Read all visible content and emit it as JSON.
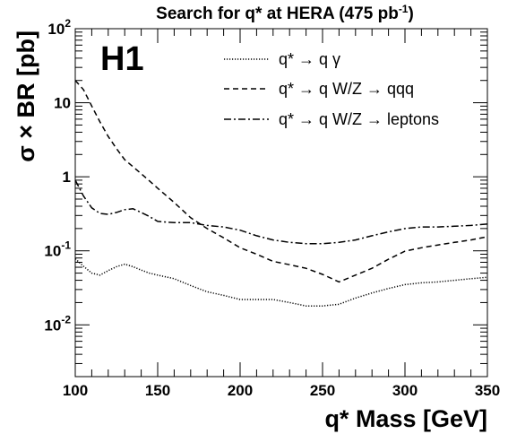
{
  "chart_data": {
    "type": "line",
    "title": {
      "main": "Search for q* at HERA (475 pb",
      "sup": "-1",
      "tail": ")"
    },
    "badge": "H1",
    "xlabel": "q* Mass [GeV]",
    "ylabel": "σ × BR [pb]",
    "xlim": [
      100,
      350
    ],
    "ylim": [
      0.002,
      100
    ],
    "yscale": "log",
    "x_ticks": [
      100,
      150,
      200,
      250,
      300,
      350
    ],
    "x_tick_labels": [
      "100",
      "150",
      "200",
      "250",
      "300",
      "350"
    ],
    "y_ticks": [
      {
        "value": 100,
        "base": "10",
        "exp": "2"
      },
      {
        "value": 10,
        "base": "10",
        "exp": ""
      },
      {
        "value": 1,
        "base": "1",
        "exp": ""
      },
      {
        "value": 0.1,
        "base": "10",
        "exp": "-1"
      },
      {
        "value": 0.01,
        "base": "10",
        "exp": "-2"
      }
    ],
    "grid": false,
    "legend_position": "top-right",
    "series": [
      {
        "name": "q* → q γ",
        "style": "dotted",
        "x": [
          100,
          105,
          110,
          115,
          120,
          125,
          130,
          135,
          140,
          145,
          150,
          160,
          170,
          180,
          190,
          200,
          210,
          220,
          230,
          240,
          250,
          260,
          270,
          280,
          290,
          300,
          310,
          320,
          330,
          340,
          350
        ],
        "y": [
          0.078,
          0.062,
          0.05,
          0.047,
          0.054,
          0.061,
          0.066,
          0.061,
          0.055,
          0.05,
          0.047,
          0.042,
          0.034,
          0.028,
          0.025,
          0.022,
          0.022,
          0.022,
          0.02,
          0.018,
          0.018,
          0.019,
          0.023,
          0.027,
          0.031,
          0.035,
          0.037,
          0.038,
          0.04,
          0.042,
          0.044
        ]
      },
      {
        "name": "q* → q W/Z → qqq",
        "style": "dashed",
        "x": [
          100,
          105,
          110,
          115,
          120,
          125,
          130,
          140,
          150,
          160,
          170,
          180,
          190,
          200,
          210,
          220,
          230,
          240,
          250,
          260,
          270,
          280,
          290,
          300,
          310,
          320,
          330,
          340,
          350
        ],
        "y": [
          20,
          15,
          9,
          5.5,
          3.5,
          2.4,
          1.7,
          1.1,
          0.7,
          0.45,
          0.28,
          0.2,
          0.15,
          0.11,
          0.09,
          0.072,
          0.065,
          0.058,
          0.048,
          0.038,
          0.047,
          0.058,
          0.077,
          0.099,
          0.11,
          0.12,
          0.13,
          0.14,
          0.155
        ]
      },
      {
        "name": "q* → q W/Z → leptons",
        "style": "dashdot",
        "x": [
          100,
          105,
          110,
          115,
          120,
          125,
          130,
          135,
          140,
          145,
          150,
          160,
          170,
          180,
          190,
          200,
          210,
          220,
          230,
          240,
          250,
          260,
          270,
          280,
          290,
          300,
          310,
          320,
          330,
          340,
          350
        ],
        "y": [
          0.9,
          0.55,
          0.38,
          0.32,
          0.31,
          0.33,
          0.36,
          0.37,
          0.33,
          0.29,
          0.25,
          0.24,
          0.24,
          0.22,
          0.21,
          0.19,
          0.16,
          0.14,
          0.13,
          0.125,
          0.125,
          0.13,
          0.14,
          0.16,
          0.18,
          0.2,
          0.21,
          0.21,
          0.215,
          0.22,
          0.23
        ]
      }
    ]
  }
}
